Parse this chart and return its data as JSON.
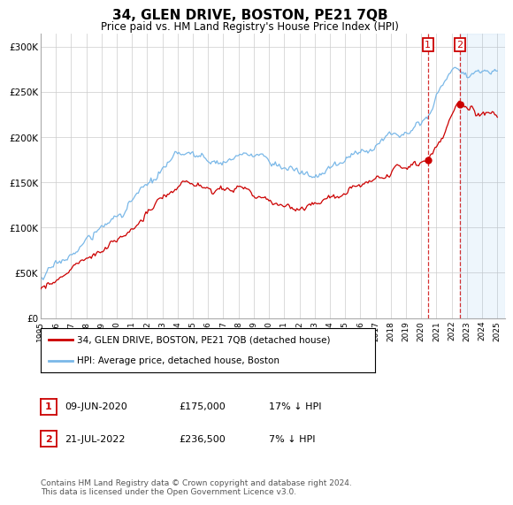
{
  "title": "34, GLEN DRIVE, BOSTON, PE21 7QB",
  "subtitle": "Price paid vs. HM Land Registry's House Price Index (HPI)",
  "ylabel_ticks": [
    "£0",
    "£50K",
    "£100K",
    "£150K",
    "£200K",
    "£250K",
    "£300K"
  ],
  "ytick_values": [
    0,
    50000,
    100000,
    150000,
    200000,
    250000,
    300000
  ],
  "ylim": [
    0,
    315000
  ],
  "xlim_start": 1995.0,
  "xlim_end": 2025.5,
  "hpi_color": "#7ab8e8",
  "price_color": "#cc0000",
  "sale1_date": 2020.44,
  "sale1_price": 175000,
  "sale1_label": "1",
  "sale2_date": 2022.55,
  "sale2_price": 236500,
  "sale2_label": "2",
  "legend_line1": "34, GLEN DRIVE, BOSTON, PE21 7QB (detached house)",
  "legend_line2": "HPI: Average price, detached house, Boston",
  "table_row1": [
    "1",
    "09-JUN-2020",
    "£175,000",
    "17% ↓ HPI"
  ],
  "table_row2": [
    "2",
    "21-JUL-2022",
    "£236,500",
    "7% ↓ HPI"
  ],
  "footnote": "Contains HM Land Registry data © Crown copyright and database right 2024.\nThis data is licensed under the Open Government Licence v3.0.",
  "background_color": "#ffffff",
  "grid_color": "#cccccc"
}
